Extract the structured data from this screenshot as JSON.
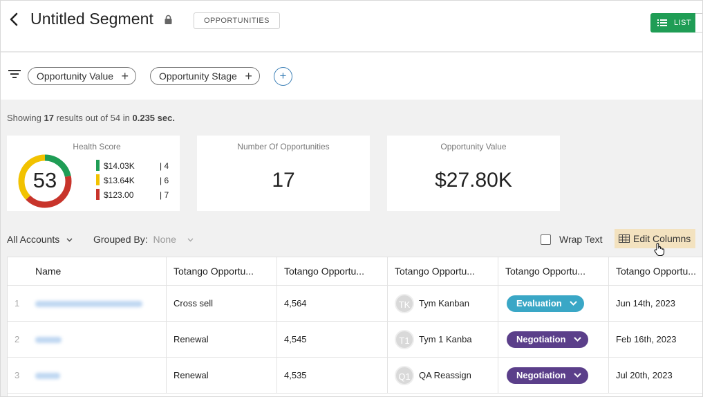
{
  "header": {
    "title": "Untitled Segment",
    "type_badge": "OPPORTUNITIES",
    "list_button": "LIST"
  },
  "filters": {
    "chips": [
      "Opportunity Value",
      "Opportunity Stage"
    ],
    "add_label": "+"
  },
  "results": {
    "prefix": "Showing",
    "shown": "17",
    "middle": "results out of",
    "total": "54",
    "in": "in",
    "time": "0.235 sec."
  },
  "cards": {
    "health": {
      "title": "Health Score",
      "score": "53",
      "legend": [
        {
          "value": "$14.03K",
          "count": "| 4",
          "color": "#1f9d55"
        },
        {
          "value": "$13.64K",
          "count": "| 6",
          "color": "#f2c200"
        },
        {
          "value": "$123.00",
          "count": "| 7",
          "color": "#c8342b"
        }
      ]
    },
    "count": {
      "title": "Number Of Opportunities",
      "value": "17"
    },
    "value": {
      "title": "Opportunity Value",
      "value": "$27.80K"
    }
  },
  "toolbar": {
    "accounts": "All Accounts",
    "grouped_label": "Grouped By:",
    "grouped_value": "None",
    "wrap_text": "Wrap Text",
    "edit_columns": "Edit Columns"
  },
  "table": {
    "columns": [
      "Name",
      "Totango Opportu...",
      "Totango Opportu...",
      "Totango Opportu...",
      "Totango Opportu...",
      "Totango Opportu..."
    ],
    "rows": [
      {
        "num": "1",
        "type": "Cross sell",
        "amount": "4,564",
        "initials": "TK",
        "owner": "Tym Kanban",
        "stage": "Evaluation",
        "stage_color": "#3aa7c6",
        "date": "Jun 14th, 2023"
      },
      {
        "num": "2",
        "type": "Renewal",
        "amount": "4,545",
        "initials": "T1",
        "owner": "Tym 1 Kanba",
        "stage": "Negotiation",
        "stage_color": "#5b3f8a",
        "date": "Feb 16th, 2023"
      },
      {
        "num": "3",
        "type": "Renewal",
        "amount": "4,535",
        "initials": "Q1",
        "owner": "QA Reassign",
        "stage": "Negotiation",
        "stage_color": "#5b3f8a",
        "date": "Jul 20th, 2023"
      }
    ]
  }
}
